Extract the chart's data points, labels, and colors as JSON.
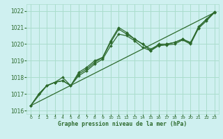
{
  "title": "Graphe pression niveau de la mer (hPa)",
  "bg_color": "#cff0f0",
  "grid_color": "#aaddcc",
  "line_color": "#2d6a2d",
  "marker_color": "#2d6a2d",
  "xlim": [
    -0.5,
    23.5
  ],
  "ylim": [
    1015.8,
    1022.4
  ],
  "yticks": [
    1016,
    1017,
    1018,
    1019,
    1020,
    1021,
    1022
  ],
  "xticks": [
    0,
    1,
    2,
    3,
    4,
    5,
    6,
    7,
    8,
    9,
    10,
    11,
    12,
    13,
    14,
    15,
    16,
    17,
    18,
    19,
    20,
    21,
    22,
    23
  ],
  "series1_x": [
    0,
    1,
    2,
    3,
    4,
    5,
    6,
    7,
    8,
    9,
    10,
    11,
    12,
    13,
    14,
    15,
    16,
    17,
    18,
    19,
    20,
    21,
    22,
    23
  ],
  "series1_y": [
    1016.3,
    1017.0,
    1017.5,
    1017.7,
    1017.8,
    1017.5,
    1018.3,
    1018.6,
    1019.0,
    1019.2,
    1020.2,
    1021.0,
    1020.7,
    1020.3,
    1020.0,
    1019.6,
    1020.0,
    1020.0,
    1020.1,
    1020.3,
    1020.1,
    1021.0,
    1021.5,
    1021.9
  ],
  "series2_x": [
    0,
    1,
    2,
    3,
    4,
    5,
    6,
    7,
    8,
    9,
    10,
    11,
    12,
    13,
    14,
    15,
    16,
    17,
    18,
    19,
    20,
    21,
    22,
    23
  ],
  "series2_y": [
    1016.3,
    1017.0,
    1017.5,
    1017.7,
    1017.8,
    1017.5,
    1018.1,
    1018.4,
    1018.8,
    1019.1,
    1019.9,
    1020.6,
    1020.5,
    1020.2,
    1019.8,
    1019.6,
    1019.9,
    1019.95,
    1020.0,
    1020.25,
    1020.0,
    1020.95,
    1021.4,
    1021.9
  ],
  "series3_x": [
    0,
    2,
    3,
    4,
    5,
    6,
    7,
    8,
    9,
    10,
    11,
    12,
    13,
    14,
    15,
    16,
    17,
    18,
    19,
    20,
    21,
    22,
    23
  ],
  "series3_y": [
    1016.3,
    1017.5,
    1017.7,
    1018.0,
    1017.5,
    1018.2,
    1018.5,
    1018.9,
    1019.2,
    1020.1,
    1020.9,
    1020.6,
    1020.3,
    1020.0,
    1019.7,
    1019.95,
    1020.0,
    1020.1,
    1020.3,
    1020.05,
    1021.05,
    1021.5,
    1021.95
  ],
  "series4_x": [
    0,
    23
  ],
  "series4_y": [
    1016.3,
    1021.9
  ]
}
